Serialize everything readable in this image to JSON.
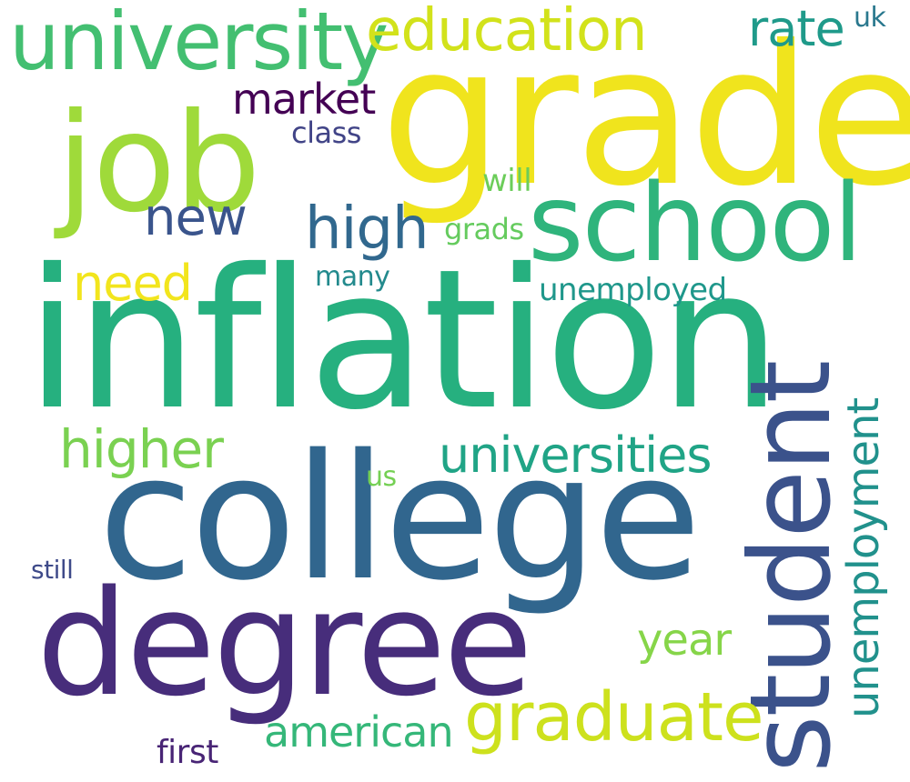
{
  "words": {
    "inflation": {
      "text": "inflation",
      "color": "#26b07f"
    },
    "grade": {
      "text": "grade",
      "color": "#f0e41d"
    },
    "college": {
      "text": "college",
      "color": "#31668e"
    },
    "degree": {
      "text": "degree",
      "color": "#472d7b"
    },
    "student": {
      "text": "student",
      "color": "#3b528b"
    },
    "school": {
      "text": "school",
      "color": "#2fb47c"
    },
    "job": {
      "text": "job",
      "color": "#9fda3a"
    },
    "university": {
      "text": "university",
      "color": "#43bf71"
    },
    "education": {
      "text": "education",
      "color": "#d2e21b"
    },
    "graduate": {
      "text": "graduate",
      "color": "#cde11d"
    },
    "unemployment": {
      "text": "unemployment",
      "color": "#21918c"
    },
    "universities": {
      "text": "universities",
      "color": "#20a486"
    },
    "higher": {
      "text": "higher",
      "color": "#7ad151"
    },
    "high": {
      "text": "high",
      "color": "#31688e"
    },
    "new": {
      "text": "new",
      "color": "#3a548c"
    },
    "american": {
      "text": "american",
      "color": "#35b779"
    },
    "rate": {
      "text": "rate",
      "color": "#1f9a8a"
    },
    "year": {
      "text": "year",
      "color": "#86d549"
    },
    "need": {
      "text": "need",
      "color": "#f2e51d"
    },
    "market": {
      "text": "market",
      "color": "#440154"
    },
    "unemployed": {
      "text": "unemployed",
      "color": "#1f978b"
    },
    "first": {
      "text": "first",
      "color": "#482475"
    },
    "class": {
      "text": "class",
      "color": "#414487"
    },
    "uk": {
      "text": "uk",
      "color": "#2a788e"
    },
    "will": {
      "text": "will",
      "color": "#6ccd5a"
    },
    "grads": {
      "text": "grads",
      "color": "#65cb5e"
    },
    "many": {
      "text": "many",
      "color": "#238a8d"
    },
    "us": {
      "text": "us",
      "color": "#75d054"
    },
    "still": {
      "text": "still",
      "color": "#3e4a89"
    }
  }
}
